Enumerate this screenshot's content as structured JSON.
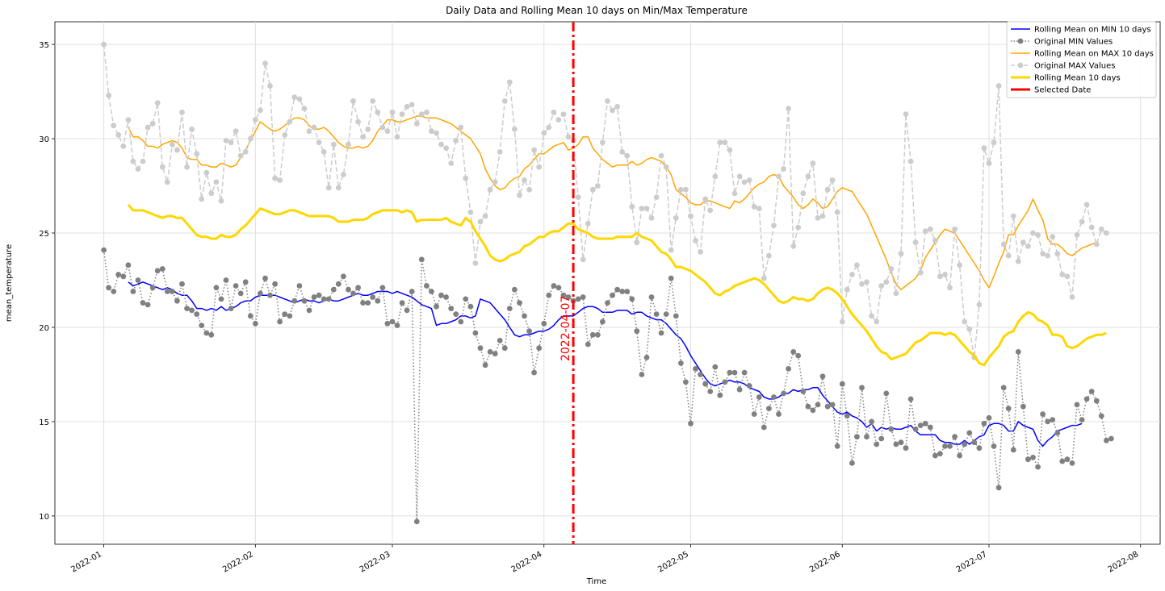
{
  "chart_data": {
    "type": "line",
    "title": "Daily Data and Rolling Mean 10 days on Min/Max Temperature",
    "xlabel": "Time",
    "ylabel": "mean_temperature",
    "x_start": "2022-01-01",
    "x_tick_labels": [
      "2022-01",
      "2022-02",
      "2022-03",
      "2022-04",
      "2022-05",
      "2022-06",
      "2022-07",
      "2022-08"
    ],
    "x_tick_days": [
      0,
      31,
      59,
      90,
      120,
      151,
      181,
      212
    ],
    "xlim_days": [
      -10,
      216
    ],
    "y_ticks": [
      10,
      15,
      20,
      25,
      30,
      35
    ],
    "ylim": [
      8.5,
      36.2
    ],
    "grid": true,
    "legend_position": "upper right",
    "selected_date": {
      "label": "2022-04-07",
      "day": 96,
      "color": "#ff0000"
    },
    "series": [
      {
        "name": "Rolling Mean on MIN 10 days",
        "color": "#0000ff",
        "style": "solid",
        "start_day": 5,
        "values": [
          22.4,
          22.2,
          22.3,
          22.4,
          22.3,
          22.2,
          22.1,
          22.0,
          22.1,
          22.0,
          21.8,
          21.7,
          21.7,
          21.4,
          21.0,
          21.0,
          20.9,
          21.0,
          20.9,
          21.1,
          20.9,
          21.0,
          21.1,
          21.3,
          21.4,
          21.4,
          21.6,
          21.7,
          21.7,
          21.7,
          21.7,
          21.6,
          21.5,
          21.4,
          21.3,
          21.4,
          21.5,
          21.4,
          21.4,
          21.3,
          21.4,
          21.5,
          21.4,
          21.4,
          21.5,
          21.6,
          21.7,
          21.8,
          21.7,
          21.7,
          21.8,
          21.9,
          21.9,
          21.9,
          21.8,
          21.9,
          21.8,
          21.7,
          21.6,
          21.4,
          21.2,
          21.1,
          21.0,
          20.1,
          20.2,
          20.2,
          20.3,
          20.4,
          20.6,
          20.6,
          20.5,
          20.6,
          21.5,
          21.4,
          21.3,
          21.0,
          20.7,
          20.4,
          20.0,
          19.6,
          19.5,
          19.6,
          19.6,
          19.7,
          19.8,
          19.8,
          19.9,
          20.1,
          20.4,
          20.6,
          20.6,
          20.6,
          20.8,
          21.0,
          21.1,
          21.1,
          21.0,
          20.8,
          20.8,
          20.8,
          20.9,
          20.9,
          20.9,
          20.7,
          20.8,
          20.8,
          20.6,
          20.5,
          20.4,
          20.4,
          20.2,
          19.9,
          19.6,
          19.4,
          19.0,
          18.5,
          18.1,
          17.7,
          17.3,
          17.0,
          16.9,
          17.0,
          17.1,
          17.2,
          17.1,
          17.1,
          17.0,
          16.8,
          16.7,
          16.6,
          16.3,
          16.2,
          16.2,
          16.3,
          16.5,
          16.5,
          16.7,
          16.6,
          16.7,
          16.7,
          16.8,
          16.8,
          16.4,
          16.1,
          15.8,
          15.5,
          15.4,
          15.5,
          15.3,
          15.2,
          15.0,
          14.7,
          14.9,
          14.5,
          14.7,
          14.6,
          14.7,
          14.6,
          14.6,
          14.7,
          14.8,
          14.5,
          14.3,
          14.3,
          14.3,
          14.3,
          14.0,
          13.9,
          13.9,
          13.8,
          13.8,
          14.0,
          13.8,
          14.0,
          14.2,
          14.3,
          14.8,
          14.9,
          14.9,
          14.8,
          14.5,
          14.5,
          15.0,
          14.8,
          14.7,
          14.6,
          14.0,
          13.7,
          14.0,
          14.2,
          14.5,
          14.6,
          14.7,
          14.8,
          14.8,
          14.9
        ]
      },
      {
        "name": "Original MIN Values",
        "color": "#808080",
        "style": "dotted",
        "markers": true,
        "start_day": 0,
        "values": [
          24.1,
          22.1,
          21.9,
          22.8,
          22.7,
          23.3,
          21.9,
          22.5,
          21.3,
          21.2,
          22.1,
          23.0,
          23.1,
          21.9,
          21.9,
          21.4,
          22.3,
          21.0,
          20.9,
          20.7,
          20.1,
          19.7,
          19.6,
          22.1,
          21.5,
          22.5,
          21.0,
          22.2,
          21.8,
          22.4,
          20.6,
          20.2,
          21.8,
          22.6,
          21.7,
          22.3,
          20.3,
          20.7,
          20.6,
          21.4,
          22.2,
          21.4,
          20.9,
          21.6,
          21.7,
          21.5,
          21.5,
          22.0,
          22.3,
          22.7,
          22.0,
          21.8,
          22.1,
          21.3,
          21.3,
          21.6,
          21.4,
          22.1,
          20.2,
          20.3,
          20.1,
          21.3,
          20.9,
          21.9,
          9.7,
          23.6,
          22.2,
          21.9,
          21.1,
          21.7,
          21.6,
          21.0,
          20.7,
          20.3,
          21.5,
          21.1,
          19.7,
          18.9,
          18.0,
          18.7,
          18.6,
          19.3,
          18.9,
          21.0,
          22.0,
          21.3,
          20.6,
          19.8,
          17.6,
          18.9,
          20.2,
          21.7,
          22.2,
          22.1,
          21.7,
          21.6,
          21.4,
          21.5,
          21.6,
          19.1,
          19.6,
          19.6,
          20.3,
          21.3,
          21.7,
          22.0,
          21.9,
          21.9,
          21.5,
          19.8,
          17.5,
          18.4,
          21.6,
          20.7,
          19.7,
          20.7,
          22.6,
          20.6,
          18.1,
          17.1,
          14.9,
          17.8,
          17.5,
          17.0,
          16.6,
          17.9,
          16.4,
          17.1,
          17.6,
          17.6,
          16.7,
          17.6,
          16.9,
          15.4,
          16.3,
          14.7,
          15.7,
          16.3,
          15.4,
          16.5,
          17.8,
          18.7,
          18.5,
          16.6,
          15.8,
          15.6,
          15.9,
          17.4,
          15.8,
          15.9,
          13.7,
          17.0,
          15.3,
          12.8,
          14.2,
          16.8,
          14.2,
          15.0,
          13.8,
          14.1,
          16.5,
          14.6,
          13.8,
          13.9,
          13.6,
          16.2,
          14.6,
          14.8,
          14.9,
          14.7,
          13.2,
          13.3,
          13.7,
          13.7,
          14.2,
          13.2,
          13.8,
          14.4,
          13.9,
          13.6,
          14.9,
          15.2,
          13.7,
          11.5,
          16.8,
          15.7,
          13.5,
          18.7,
          15.8,
          13.0,
          13.1,
          12.6,
          15.4,
          15.0,
          15.1,
          14.4,
          12.9,
          13.0,
          12.8,
          15.9,
          15.1,
          16.2,
          16.6,
          16.1,
          15.3,
          14.0,
          14.1
        ]
      },
      {
        "name": "Rolling Mean on MAX 10 days",
        "color": "#ffa500",
        "style": "solid",
        "start_day": 5,
        "values": [
          30.6,
          30.1,
          30.1,
          29.9,
          29.6,
          29.6,
          29.5,
          29.7,
          29.8,
          29.9,
          29.8,
          29.5,
          29.0,
          28.9,
          28.9,
          28.6,
          28.6,
          28.5,
          28.5,
          28.7,
          28.6,
          28.5,
          28.6,
          29.0,
          29.4,
          29.9,
          30.4,
          30.9,
          30.7,
          30.5,
          30.4,
          30.5,
          30.7,
          30.9,
          31.1,
          31.1,
          31.0,
          30.7,
          30.5,
          30.5,
          30.6,
          30.4,
          30.1,
          29.8,
          29.6,
          29.5,
          29.5,
          29.6,
          29.5,
          29.6,
          29.9,
          30.4,
          30.7,
          31.0,
          31.0,
          30.9,
          30.9,
          31.0,
          31.1,
          31.2,
          31.2,
          31.1,
          31.1,
          31.1,
          31.0,
          30.9,
          30.8,
          30.6,
          30.4,
          30.2,
          30.0,
          29.6,
          29.2,
          28.4,
          27.9,
          27.5,
          27.3,
          27.4,
          27.7,
          27.9,
          28.0,
          28.4,
          28.6,
          28.9,
          29.2,
          29.2,
          29.4,
          29.6,
          29.7,
          29.8,
          29.4,
          29.5,
          29.7,
          30.1,
          30.1,
          29.5,
          29.2,
          28.9,
          28.7,
          28.5,
          28.6,
          28.6,
          28.6,
          28.8,
          28.6,
          28.7,
          28.9,
          29.0,
          28.9,
          28.8,
          28.5,
          28.1,
          27.3,
          27.1,
          26.9,
          26.6,
          26.5,
          26.5,
          26.7,
          26.7,
          26.6,
          26.5,
          26.4,
          26.3,
          26.7,
          26.6,
          26.8,
          27.1,
          27.4,
          27.6,
          27.7,
          28.0,
          28.1,
          28.0,
          27.5,
          27.2,
          26.9,
          26.5,
          26.3,
          26.5,
          26.8,
          26.6,
          26.3,
          26.4,
          26.8,
          27.2,
          27.4,
          27.3,
          27.2,
          26.8,
          26.4,
          26.0,
          25.4,
          24.8,
          24.2,
          23.6,
          22.9,
          22.3,
          22.0,
          22.2,
          22.4,
          22.6,
          23.0,
          23.7,
          24.1,
          24.5,
          24.9,
          25.2,
          25.1,
          25.0,
          24.6,
          24.2,
          23.8,
          23.4,
          23.0,
          22.5,
          22.1,
          22.7,
          23.4,
          24.0,
          24.9,
          24.9,
          25.4,
          25.8,
          26.2,
          26.8,
          26.2,
          25.7,
          24.7,
          24.4,
          24.4,
          24.2,
          23.9,
          23.8,
          24.0,
          24.2,
          24.3,
          24.4,
          24.5
        ]
      },
      {
        "name": "Original MAX Values",
        "color": "#cccccc",
        "style": "dashed",
        "markers": true,
        "start_day": 0,
        "values": [
          35.0,
          32.3,
          30.7,
          30.2,
          29.6,
          31.0,
          28.8,
          28.4,
          28.8,
          30.6,
          30.8,
          31.9,
          28.5,
          27.7,
          29.7,
          29.4,
          31.4,
          28.5,
          30.5,
          29.2,
          26.8,
          28.2,
          27.1,
          27.7,
          26.7,
          29.9,
          29.8,
          30.4,
          29.1,
          29.3,
          30.0,
          31.0,
          31.5,
          34.0,
          32.8,
          27.9,
          27.8,
          30.2,
          30.9,
          32.2,
          32.1,
          31.6,
          30.4,
          30.6,
          29.8,
          29.3,
          27.4,
          29.7,
          27.4,
          28.1,
          29.7,
          32.0,
          30.9,
          30.1,
          30.5,
          32.0,
          31.4,
          30.6,
          30.4,
          31.4,
          30.1,
          31.3,
          31.7,
          31.8,
          30.8,
          31.3,
          31.4,
          30.4,
          30.3,
          29.7,
          29.5,
          28.7,
          29.9,
          30.6,
          27.9,
          26.1,
          23.4,
          25.6,
          25.9,
          27.3,
          27.7,
          29.3,
          32.0,
          33.0,
          30.5,
          27.0,
          27.8,
          27.3,
          29.4,
          28.5,
          30.3,
          30.6,
          31.4,
          31.0,
          31.3,
          30.1,
          29.9,
          26.9,
          23.6,
          25.5,
          27.3,
          27.5,
          29.8,
          32.0,
          31.5,
          31.7,
          29.3,
          29.1,
          26.4,
          24.5,
          26.3,
          26.3,
          25.8,
          26.9,
          29.1,
          28.5,
          24.1,
          25.8,
          27.3,
          27.3,
          25.9,
          24.6,
          24.0,
          26.8,
          26.2,
          28.0,
          29.8,
          29.8,
          29.4,
          27.1,
          28.0,
          27.7,
          27.8,
          26.4,
          26.3,
          22.6,
          23.8,
          25.4,
          28.0,
          28.4,
          31.6,
          24.3,
          25.3,
          27.1,
          28.0,
          28.7,
          25.8,
          25.9,
          27.3,
          27.8,
          26.1,
          20.3,
          22.0,
          22.8,
          23.3,
          22.3,
          22.4,
          20.6,
          20.3,
          22.2,
          22.4,
          23.1,
          21.8,
          23.9,
          31.3,
          28.8,
          24.5,
          22.9,
          25.1,
          25.2,
          24.6,
          22.7,
          22.8,
          22.1,
          25.2,
          23.3,
          20.3,
          19.9,
          18.4,
          21.2,
          29.5,
          28.7,
          29.8,
          32.8,
          24.4,
          23.8,
          25.9,
          23.5,
          24.5,
          24.3,
          25.0,
          24.9,
          23.9,
          23.8,
          24.8,
          23.9,
          22.8,
          22.7,
          21.6,
          24.9,
          25.6,
          26.5,
          25.3,
          24.4,
          25.2,
          25.0
        ]
      },
      {
        "name": "Rolling Mean 10 days",
        "color": "#ffd700",
        "style": "solid",
        "start_day": 5,
        "values": [
          26.5,
          26.2,
          26.2,
          26.2,
          26.1,
          26.0,
          25.9,
          25.8,
          25.9,
          25.9,
          25.8,
          25.8,
          25.5,
          25.2,
          24.9,
          24.8,
          24.8,
          24.7,
          24.7,
          24.9,
          24.8,
          24.8,
          24.9,
          25.2,
          25.4,
          25.7,
          26.0,
          26.3,
          26.2,
          26.1,
          26.0,
          26.0,
          26.1,
          26.2,
          26.2,
          26.1,
          26.0,
          25.9,
          25.9,
          25.9,
          25.9,
          25.9,
          25.8,
          25.6,
          25.6,
          25.6,
          25.7,
          25.7,
          25.7,
          25.8,
          26.0,
          26.1,
          26.2,
          26.2,
          26.2,
          26.2,
          26.1,
          26.2,
          26.1,
          25.6,
          25.7,
          25.7,
          25.7,
          25.7,
          25.7,
          25.8,
          25.6,
          25.5,
          25.4,
          25.8,
          25.6,
          25.1,
          24.7,
          24.3,
          23.8,
          23.6,
          23.5,
          23.6,
          23.8,
          23.9,
          24.0,
          24.3,
          24.4,
          24.6,
          24.8,
          24.8,
          25.0,
          25.1,
          25.1,
          25.3,
          25.5,
          25.5,
          25.2,
          25.1,
          25.0,
          24.8,
          24.7,
          24.7,
          24.7,
          24.7,
          24.8,
          24.8,
          24.8,
          24.8,
          25.0,
          24.8,
          24.7,
          24.6,
          24.3,
          24.0,
          23.9,
          23.6,
          23.2,
          23.2,
          23.1,
          23.0,
          22.8,
          22.6,
          22.4,
          22.1,
          21.8,
          21.7,
          21.9,
          22.0,
          22.2,
          22.3,
          22.4,
          22.5,
          22.6,
          22.5,
          22.3,
          22.0,
          21.7,
          21.4,
          21.3,
          21.4,
          21.6,
          21.5,
          21.5,
          21.4,
          21.5,
          21.8,
          22.0,
          22.1,
          22.0,
          21.8,
          21.5,
          21.1,
          20.7,
          20.4,
          20.1,
          19.8,
          19.4,
          19.0,
          18.7,
          18.6,
          18.3,
          18.4,
          18.5,
          18.6,
          18.9,
          19.2,
          19.3,
          19.5,
          19.7,
          19.7,
          19.7,
          19.6,
          19.7,
          19.6,
          19.3,
          19.0,
          18.7,
          18.5,
          18.1,
          18.0,
          18.4,
          18.7,
          19.0,
          19.5,
          19.7,
          19.8,
          20.3,
          20.6,
          20.8,
          20.7,
          20.4,
          20.3,
          20.1,
          19.6,
          19.6,
          19.5,
          19.0,
          18.9,
          19.0,
          19.2,
          19.4,
          19.5,
          19.6,
          19.6,
          19.7
        ]
      }
    ]
  }
}
